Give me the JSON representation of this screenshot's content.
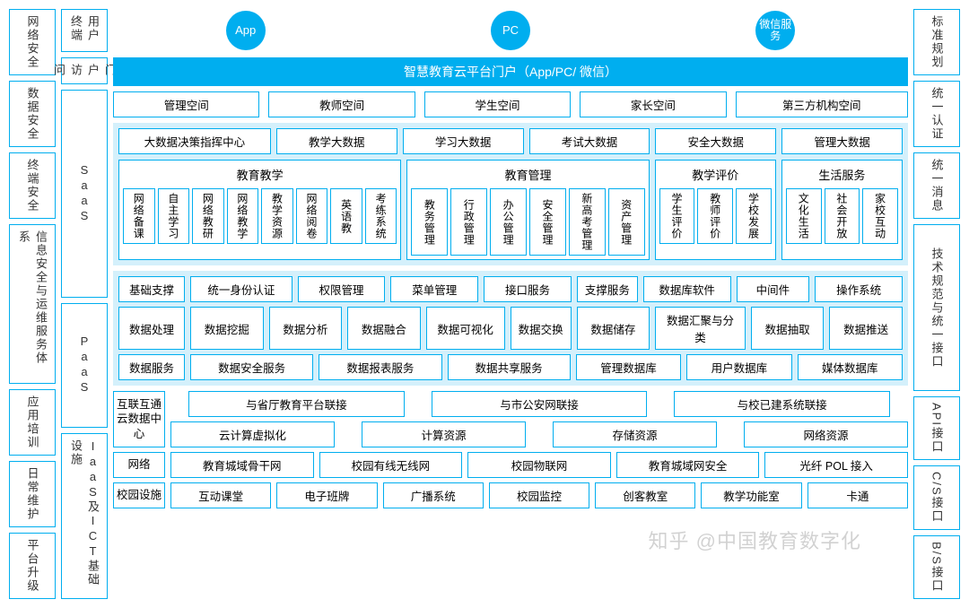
{
  "colors": {
    "primary": "#00aeef",
    "tint": "#d4f0fb",
    "border": "#00aeef",
    "text": "#333333",
    "white": "#ffffff"
  },
  "leftCol1": {
    "items": [
      "网络安全",
      "数据安全",
      "终端安全"
    ],
    "tall": "信息安全与运维服务体系",
    "bottom": [
      "应用培训",
      "日常维护",
      "平台升级"
    ]
  },
  "leftCol2": {
    "items": [
      "用户终端",
      "门户访问"
    ],
    "layers": [
      "SaaS",
      "PaaS",
      "IaaS及ICT基础设施"
    ]
  },
  "rightCol": {
    "items": [
      "标准规划",
      "统一认证",
      "统一消息"
    ],
    "tall": "技术规范与统一接口",
    "bottom": [
      "API接口",
      "C/S接口",
      "B/S接口"
    ]
  },
  "entries": [
    "App",
    "PC",
    "微信服务"
  ],
  "banner": "智慧教育云平台门户（App/PC/ 微信）",
  "spaces": [
    "管理空间",
    "教师空间",
    "学生空间",
    "家长空间",
    "第三方机构空间"
  ],
  "bigdata": [
    "大数据决策指挥中心",
    "教学大数据",
    "学习大数据",
    "考试大数据",
    "安全大数据",
    "管理大数据"
  ],
  "saasGroups": [
    {
      "title": "教育教学",
      "items": [
        "网络备课",
        "自主学习",
        "网络教研",
        "网络教学",
        "教学资源",
        "网络阅卷",
        "英语教",
        "考练系统"
      ]
    },
    {
      "title": "教育管理",
      "items": [
        "教务管理",
        "行政管理",
        "办公管理",
        "安全管理",
        "新高考管理",
        "资产管理"
      ]
    },
    {
      "title": "教学评价",
      "items": [
        "学生评价",
        "教师评价",
        "学校发展"
      ]
    },
    {
      "title": "生活服务",
      "items": [
        "文化生活",
        "社会开放",
        "家校互动"
      ]
    }
  ],
  "paas": {
    "r1": {
      "label": "基础支撑",
      "items": [
        "统一身份认证",
        "权限管理",
        "菜单管理",
        "接口服务"
      ],
      "label2": "支撑服务",
      "items2": [
        "数据库软件",
        "中间件",
        "操作系统"
      ]
    },
    "r2": {
      "label": "数据处理",
      "items": [
        "数据挖掘",
        "数据分析",
        "数据融合",
        "数据可视化"
      ],
      "label2": "数据交换",
      "items2": [
        "数据储存",
        "数据汇聚与分类",
        "数据抽取",
        "数据推送"
      ]
    },
    "r3": {
      "label": "数据服务",
      "items": [
        "数据安全服务",
        "数据报表服务",
        "数据共享服务",
        "管理数据库",
        "用户数据库",
        "媒体数据库"
      ]
    }
  },
  "iaas": {
    "cloud": {
      "label": "互联互通云数据中心",
      "r1": [
        "与省厅教育平台联接",
        "与市公安网联接",
        "与校已建系统联接"
      ],
      "r2": [
        "云计算虚拟化",
        "计算资源",
        "存储资源",
        "网络资源"
      ]
    },
    "network": {
      "label": "网络",
      "items": [
        "教育城域骨干网",
        "校园有线无线网",
        "校园物联网",
        "教育城域网安全",
        "光纤 POL 接入"
      ]
    },
    "campus": {
      "label": "校园设施",
      "items": [
        "互动课堂",
        "电子班牌",
        "广播系统",
        "校园监控",
        "创客教室",
        "教学功能室",
        "卡通"
      ]
    }
  },
  "watermark": "知乎 @中国教育数字化"
}
